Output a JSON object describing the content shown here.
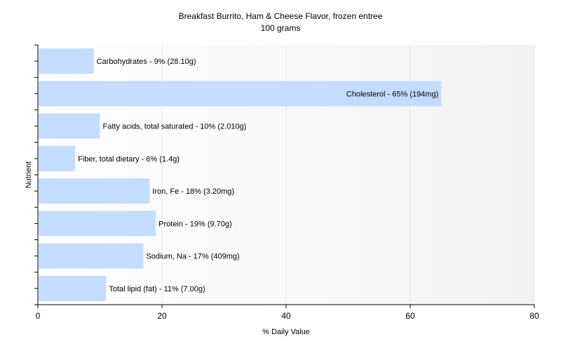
{
  "chart_data": {
    "type": "bar",
    "orientation": "horizontal",
    "title": "Breakfast Burrito, Ham & Cheese Flavor, frozen entree",
    "subtitle": "100 grams",
    "xlabel": "% Daily Value",
    "ylabel": "Nutrient",
    "xlim": [
      0,
      80
    ],
    "xticks": [
      "0",
      "20",
      "40",
      "60",
      "80"
    ],
    "grid": true,
    "bar_color": "#c4dcff",
    "categories": [
      "Carbohydrates",
      "Cholesterol",
      "Fatty acids, total saturated",
      "Fiber, total dietary",
      "Iron, Fe",
      "Protein",
      "Sodium, Na",
      "Total lipid (fat)"
    ],
    "values": [
      9,
      65,
      10,
      6,
      18,
      19,
      17,
      11
    ],
    "labels": [
      "Carbohydrates - 9% (28.10g)",
      "Cholesterol - 65% (194mg)",
      "Fatty acids, total saturated - 10% (2.010g)",
      "Fiber, total dietary - 6% (1.4g)",
      "Iron, Fe - 18% (3.20mg)",
      "Protein - 19% (9.70g)",
      "Sodium, Na - 17% (409mg)",
      "Total lipid (fat) - 11% (7.00g)"
    ]
  }
}
